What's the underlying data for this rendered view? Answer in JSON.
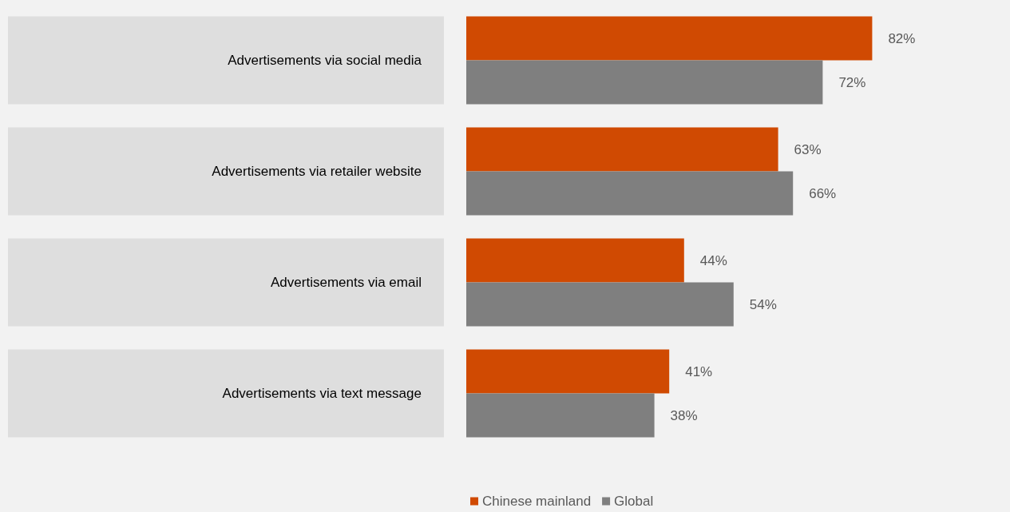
{
  "chart_data": {
    "type": "bar",
    "orientation": "horizontal",
    "categories": [
      "Advertisements via social media",
      "Advertisements via retailer website",
      "Advertisements via email",
      "Advertisements via text message"
    ],
    "series": [
      {
        "name": "Chinese mainland",
        "color": "#d04a02",
        "values": [
          82,
          63,
          44,
          41
        ],
        "value_labels": [
          "82%",
          "63%",
          "44%",
          "41%"
        ]
      },
      {
        "name": "Global",
        "color": "#7f7f7f",
        "values": [
          72,
          66,
          54,
          38
        ],
        "value_labels": [
          "72%",
          "66%",
          "54%",
          "38%"
        ]
      }
    ],
    "grid": false,
    "legend": "bottom"
  }
}
